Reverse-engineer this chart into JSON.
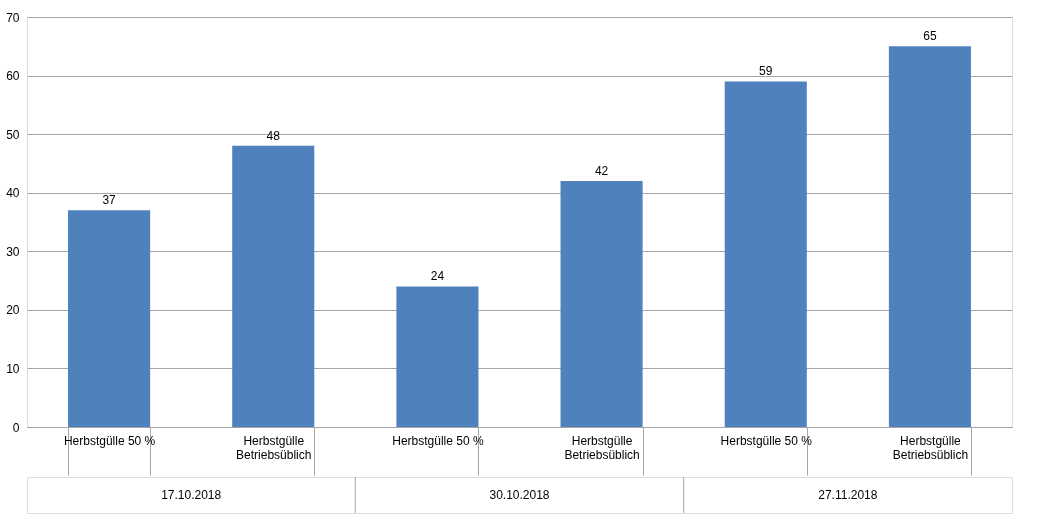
{
  "chart_data": {
    "type": "bar",
    "categories": [
      "Herbstgülle 50 %",
      "Herbstgülle\nBetriebsüblich",
      "Herbstgülle 50 %",
      "Herbstgülle\nBetriebsüblich",
      "Herbstgülle 50 %",
      "Herbstgülle\nBetriebsüblich"
    ],
    "values": [
      37,
      48,
      24,
      42,
      59,
      65
    ],
    "color": "#4f81bd",
    "ylim": [
      0,
      70
    ],
    "yticks": [
      0,
      10,
      20,
      30,
      40,
      50,
      60,
      70
    ],
    "grid": "y",
    "data_labels": true,
    "annotations": [
      "17.10.2018",
      "30.10.2018",
      "27.11.2018"
    ]
  }
}
